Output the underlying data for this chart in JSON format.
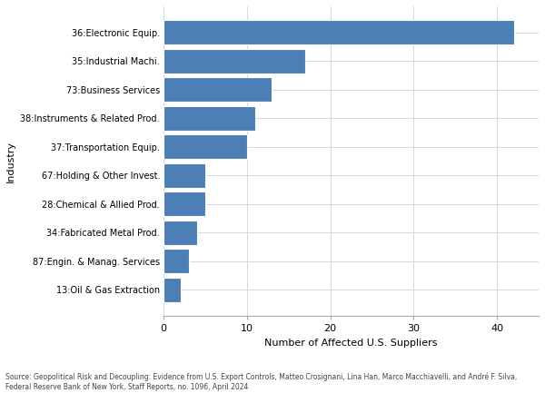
{
  "categories": [
    "13:Oil & Gas Extraction",
    "87:Engin. & Manag. Services",
    "34:Fabricated Metal Prod.",
    "28:Chemical & Allied Prod.",
    "67:Holding & Other Invest.",
    "37:Transportation Equip.",
    "38:Instruments & Related Prod.",
    "73:Business Services",
    "35:Industrial Machi.",
    "36:Electronic Equip."
  ],
  "values": [
    2,
    3,
    4,
    5,
    5,
    10,
    11,
    13,
    17,
    42
  ],
  "bar_color": "#4b7fb5",
  "xlabel": "Number of Affected U.S. Suppliers",
  "ylabel": "Industry",
  "xlim": [
    0,
    45
  ],
  "xticks": [
    0,
    10,
    20,
    30,
    40
  ],
  "background_color": "#ffffff",
  "grid_color": "#d0d8e8",
  "source_text": "Source: Geopolitical Risk and Decoupling: Evidence from U.S. Export Controls, Matteo Crosignani, Lina Han, Marco Macchiavelli, and André F. Silva,\nFederal Reserve Bank of New York, Staff Reports, no. 1096, April 2024",
  "ylabel_fontsize": 8,
  "xlabel_fontsize": 8,
  "ytick_fontsize": 7,
  "xtick_fontsize": 8,
  "source_fontsize": 5.5
}
